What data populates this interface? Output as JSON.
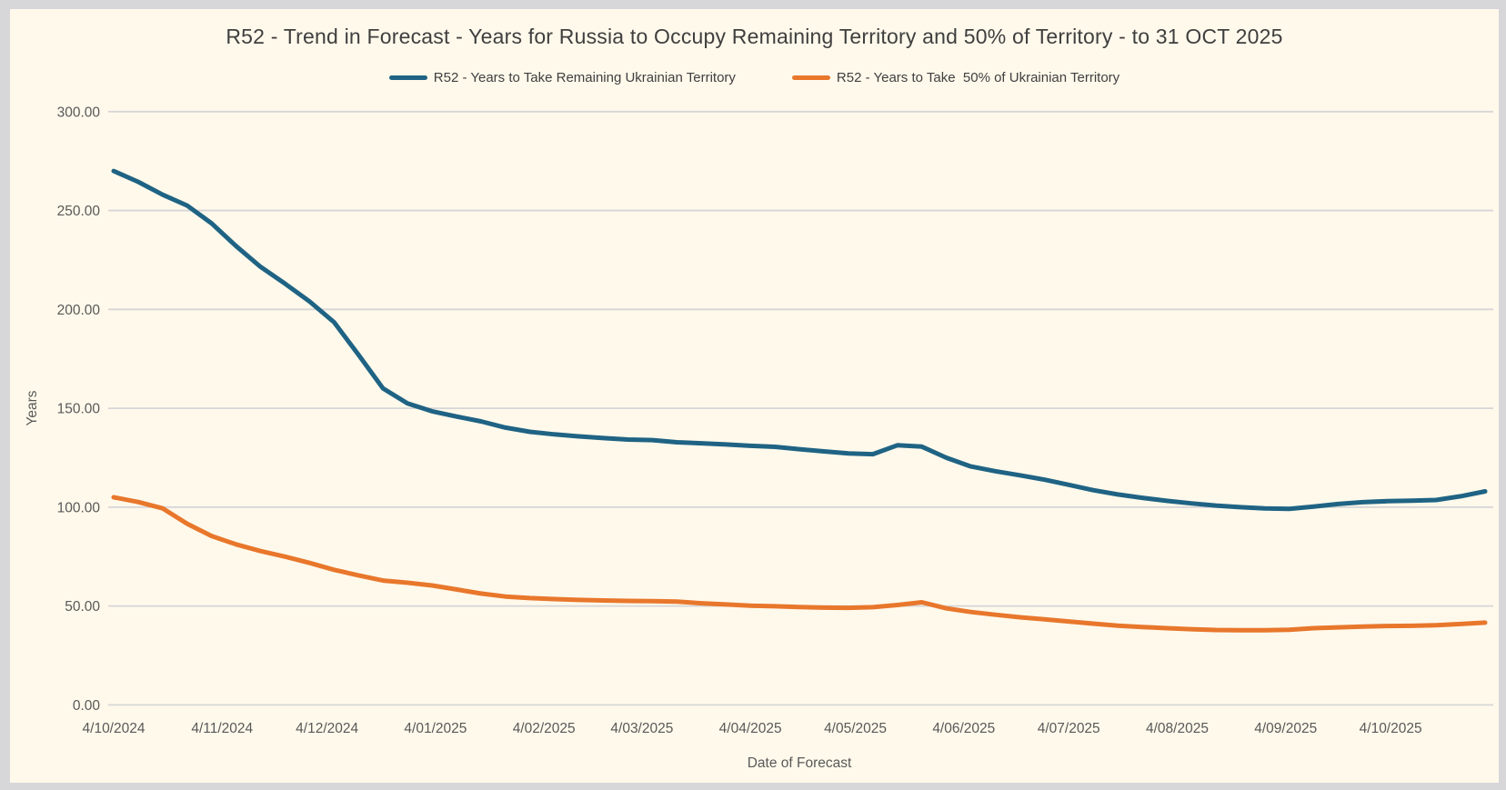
{
  "frame": {
    "outer_background": "#D7D7DA",
    "panel_background": "#FFF9EB"
  },
  "title": "R52 - Trend in Forecast - Years for Russia to Occupy Remaining Territory and 50% of Territory - to 31 OCT 2025",
  "legend": {
    "items": [
      {
        "label": "R52 - Years to Take Remaining Ukrainian Territory",
        "color": "#1F6384"
      },
      {
        "label": "R52 - Years to Take  50% of Ukrainian Territory",
        "color": "#E8772C"
      }
    ]
  },
  "colors": {
    "gridline": "#D6D6D6",
    "title_text": "#3F3F3F",
    "axis_text": "#595959",
    "legend_text": "#404040",
    "blue_series": "#1F6384",
    "orange_series": "#E8772C"
  },
  "chart_data": {
    "type": "line",
    "title": "R52 - Trend in Forecast - Years for Russia to Occupy Remaining Territory and 50% of Territory - to 31 OCT 2025",
    "xlabel": "Date of Forecast",
    "ylabel": "Years",
    "ylim": [
      0,
      300
    ],
    "grid": "horizontal",
    "legend_position": "top",
    "y_tick_values": [
      0,
      50,
      100,
      150,
      200,
      250,
      300
    ],
    "y_tick_labels": [
      "0.00",
      "50.00",
      "100.00",
      "150.00",
      "200.00",
      "250.00",
      "300.00"
    ],
    "x_domain_days": [
      0,
      392
    ],
    "x_ticks": [
      {
        "label": "4/10/2024",
        "day": 0
      },
      {
        "label": "4/11/2024",
        "day": 31
      },
      {
        "label": "4/12/2024",
        "day": 61
      },
      {
        "label": "4/01/2025",
        "day": 92
      },
      {
        "label": "4/02/2025",
        "day": 123
      },
      {
        "label": "4/03/2025",
        "day": 151
      },
      {
        "label": "4/04/2025",
        "day": 182
      },
      {
        "label": "4/05/2025",
        "day": 212
      },
      {
        "label": "4/06/2025",
        "day": 243
      },
      {
        "label": "4/07/2025",
        "day": 273
      },
      {
        "label": "4/08/2025",
        "day": 304
      },
      {
        "label": "4/09/2025",
        "day": 335
      },
      {
        "label": "4/10/2025",
        "day": 365
      }
    ],
    "series": [
      {
        "name": "R52 - Years to Take Remaining Ukrainian Territory",
        "color": "#1F6384",
        "x_days": [
          0,
          7,
          14,
          21,
          28,
          35,
          42,
          49,
          56,
          63,
          70,
          77,
          84,
          91,
          98,
          105,
          112,
          119,
          126,
          133,
          140,
          147,
          154,
          161,
          168,
          175,
          182,
          189,
          196,
          203,
          210,
          217,
          224,
          231,
          238,
          245,
          252,
          259,
          266,
          273,
          280,
          287,
          294,
          301,
          308,
          315,
          322,
          329,
          336,
          343,
          350,
          357,
          364,
          371,
          378,
          385,
          392
        ],
        "values": [
          270,
          264.5,
          258,
          252.5,
          243.5,
          232,
          221.5,
          213,
          204,
          193.5,
          177,
          160,
          152.5,
          148.5,
          145.8,
          143.4,
          140.2,
          138.1,
          136.8,
          135.8,
          134.9,
          134.2,
          133.9,
          132.8,
          132.3,
          131.7,
          131,
          130.5,
          129.3,
          128.2,
          127.2,
          126.8,
          131.3,
          130.6,
          125,
          120.6,
          118.2,
          116.1,
          113.9,
          111.3,
          108.6,
          106.4,
          104.7,
          103.2,
          101.9,
          100.8,
          100,
          99.4,
          99.1,
          100.3,
          101.6,
          102.5,
          103,
          103.3,
          103.6,
          105.5,
          108
        ]
      },
      {
        "name": "R52 - Years to Take  50% of Ukrainian Territory",
        "color": "#E8772C",
        "x_days": [
          0,
          7,
          14,
          21,
          28,
          35,
          42,
          49,
          56,
          63,
          70,
          77,
          84,
          91,
          98,
          105,
          112,
          119,
          126,
          133,
          140,
          147,
          154,
          161,
          168,
          175,
          182,
          189,
          196,
          203,
          210,
          217,
          224,
          231,
          238,
          245,
          252,
          259,
          266,
          273,
          280,
          287,
          294,
          301,
          308,
          315,
          322,
          329,
          336,
          343,
          350,
          357,
          364,
          371,
          378,
          385,
          392
        ],
        "values": [
          105,
          102.6,
          99.4,
          91.6,
          85.4,
          81.2,
          77.8,
          75,
          71.8,
          68.3,
          65.5,
          62.9,
          61.8,
          60.4,
          58.4,
          56.3,
          54.8,
          54,
          53.5,
          53.1,
          52.8,
          52.6,
          52.5,
          52.2,
          51.4,
          50.8,
          50.2,
          49.9,
          49.5,
          49.2,
          49.1,
          49.4,
          50.5,
          51.9,
          48.8,
          47,
          45.6,
          44.3,
          43.3,
          42.2,
          41.1,
          40.1,
          39.4,
          38.8,
          38.3,
          37.9,
          37.8,
          37.8,
          38,
          38.8,
          39.2,
          39.6,
          39.9,
          40,
          40.3,
          40.9,
          41.6
        ]
      }
    ]
  }
}
